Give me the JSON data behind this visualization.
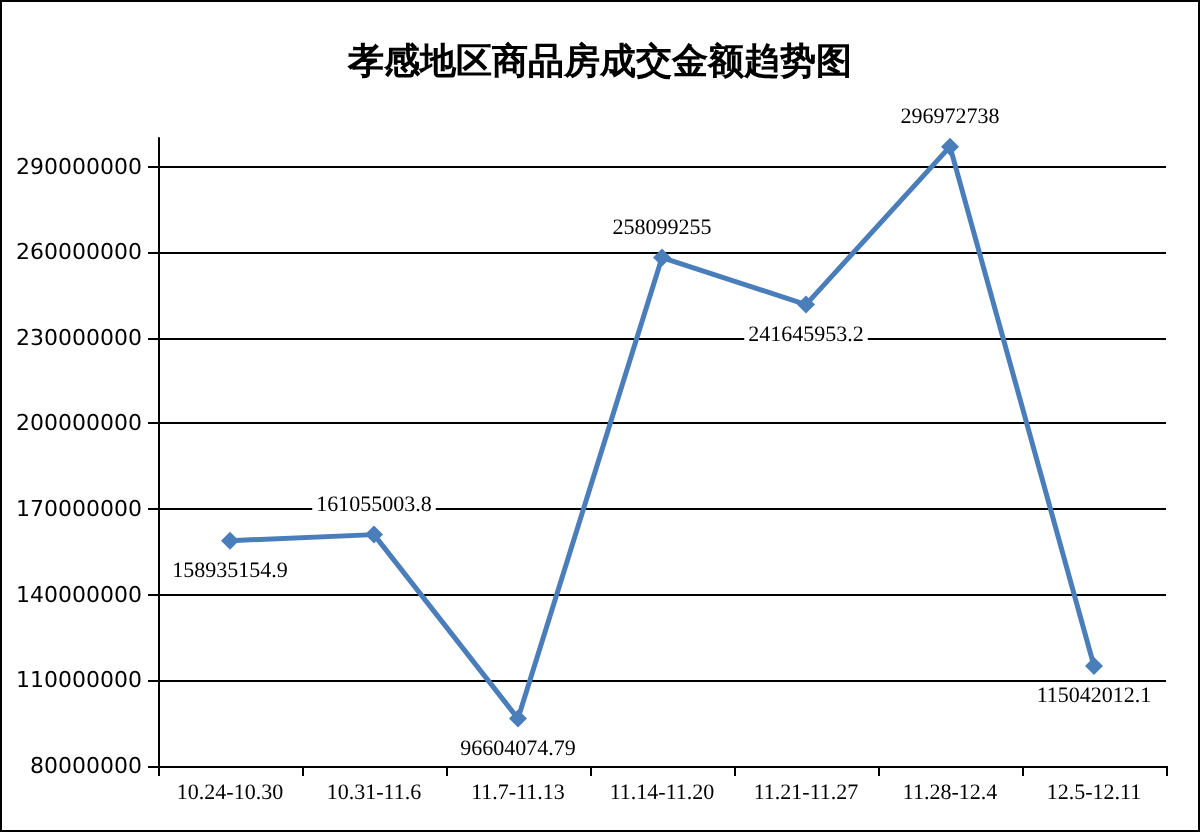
{
  "chart_data": {
    "type": "line",
    "title": "孝感地区商品房成交金额趋势图",
    "categories": [
      "10.24-10.30",
      "10.31-11.6",
      "11.7-11.13",
      "11.14-11.20",
      "11.21-11.27",
      "11.28-12.4",
      "12.5-12.11"
    ],
    "series": [
      {
        "color": "#4a7ebb",
        "values": [
          158935154.9,
          161055003.8,
          96604074.79,
          258099255,
          241645953.2,
          296972738,
          115042012.1
        ]
      }
    ],
    "ylim": [
      80000000,
      300000000
    ],
    "yticks": [
      80000000,
      110000000,
      140000000,
      170000000,
      200000000,
      230000000,
      260000000,
      290000000
    ],
    "grid": "y",
    "marker": "diamond",
    "line_style": "solid",
    "data_labels": true
  }
}
